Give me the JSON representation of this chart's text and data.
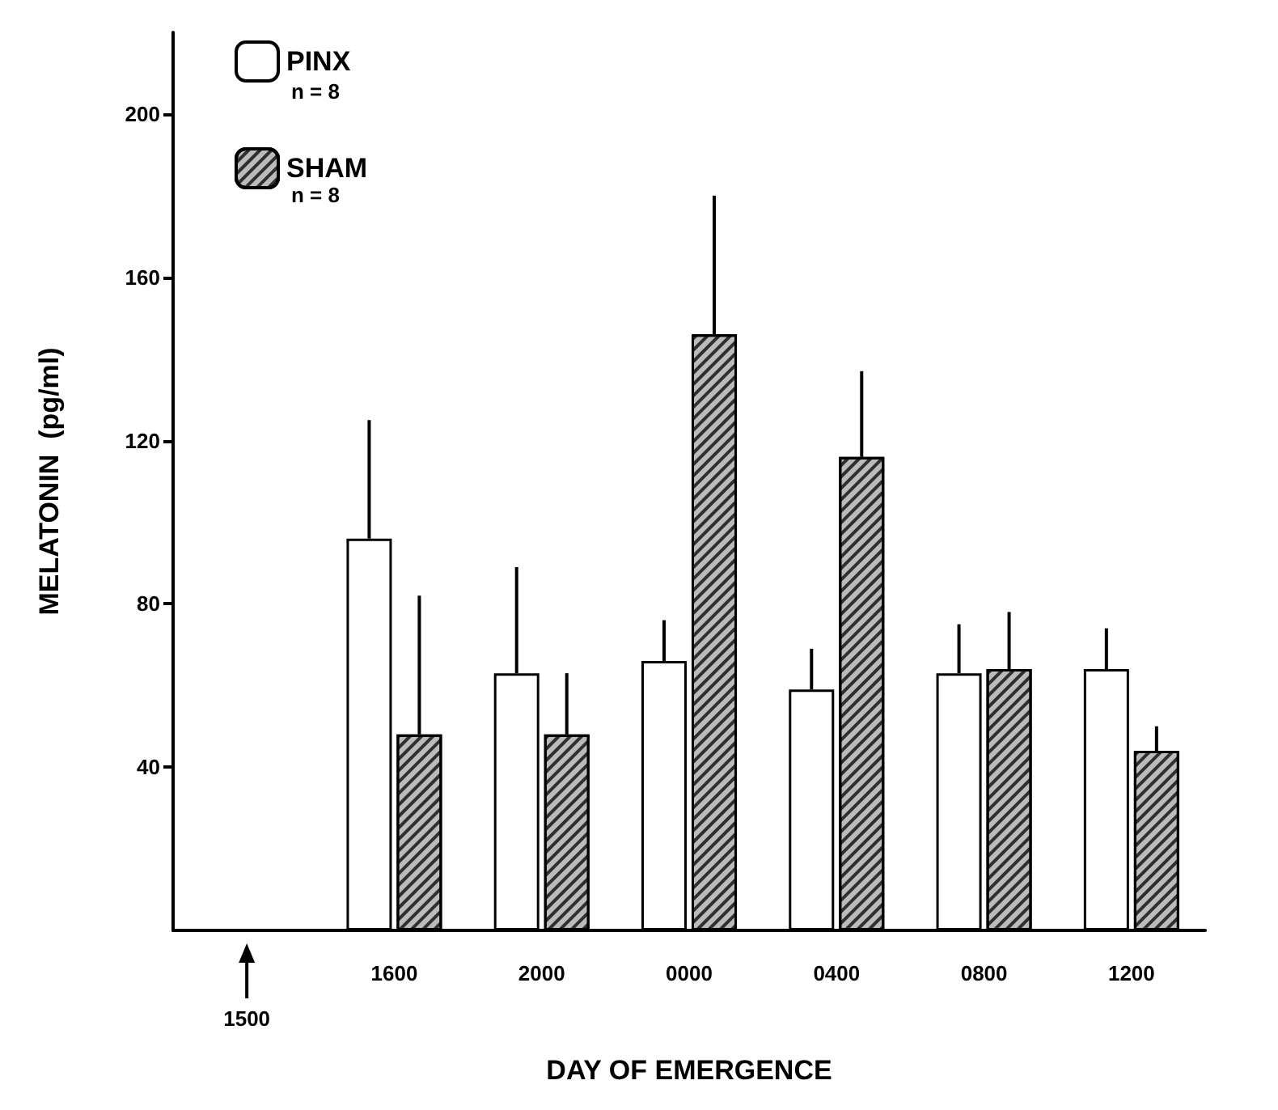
{
  "chart_data": {
    "type": "bar",
    "xlabel": "DAY OF EMERGENCE",
    "ylabel": "MELATONIN  (pg/ml)",
    "categories": [
      null,
      "1600",
      "2000",
      "0000",
      "0400",
      "0800",
      "1200"
    ],
    "series": [
      {
        "name": "PINX",
        "color": "#ffffff",
        "values": [
          null,
          96,
          63,
          66,
          59,
          63,
          64
        ],
        "errors": [
          null,
          [
            96,
            125
          ],
          [
            63,
            89
          ],
          [
            66,
            76
          ],
          [
            59,
            69
          ],
          [
            63,
            75
          ],
          [
            64,
            74
          ]
        ]
      },
      {
        "name": "SHAM",
        "color": "#bbbbbb",
        "values": [
          null,
          48,
          48,
          146,
          116,
          64,
          44
        ],
        "errors": [
          null,
          [
            48,
            82
          ],
          [
            48,
            63
          ],
          [
            146,
            180
          ],
          [
            116,
            137
          ],
          [
            64,
            78
          ],
          [
            44,
            50
          ]
        ]
      }
    ],
    "annotations": [
      "n = 8",
      "n = 8",
      "1500"
    ],
    "ylim": [
      0,
      220
    ],
    "yticks": [
      40,
      80,
      120,
      160,
      200
    ],
    "grid": false,
    "legend": "top left"
  }
}
